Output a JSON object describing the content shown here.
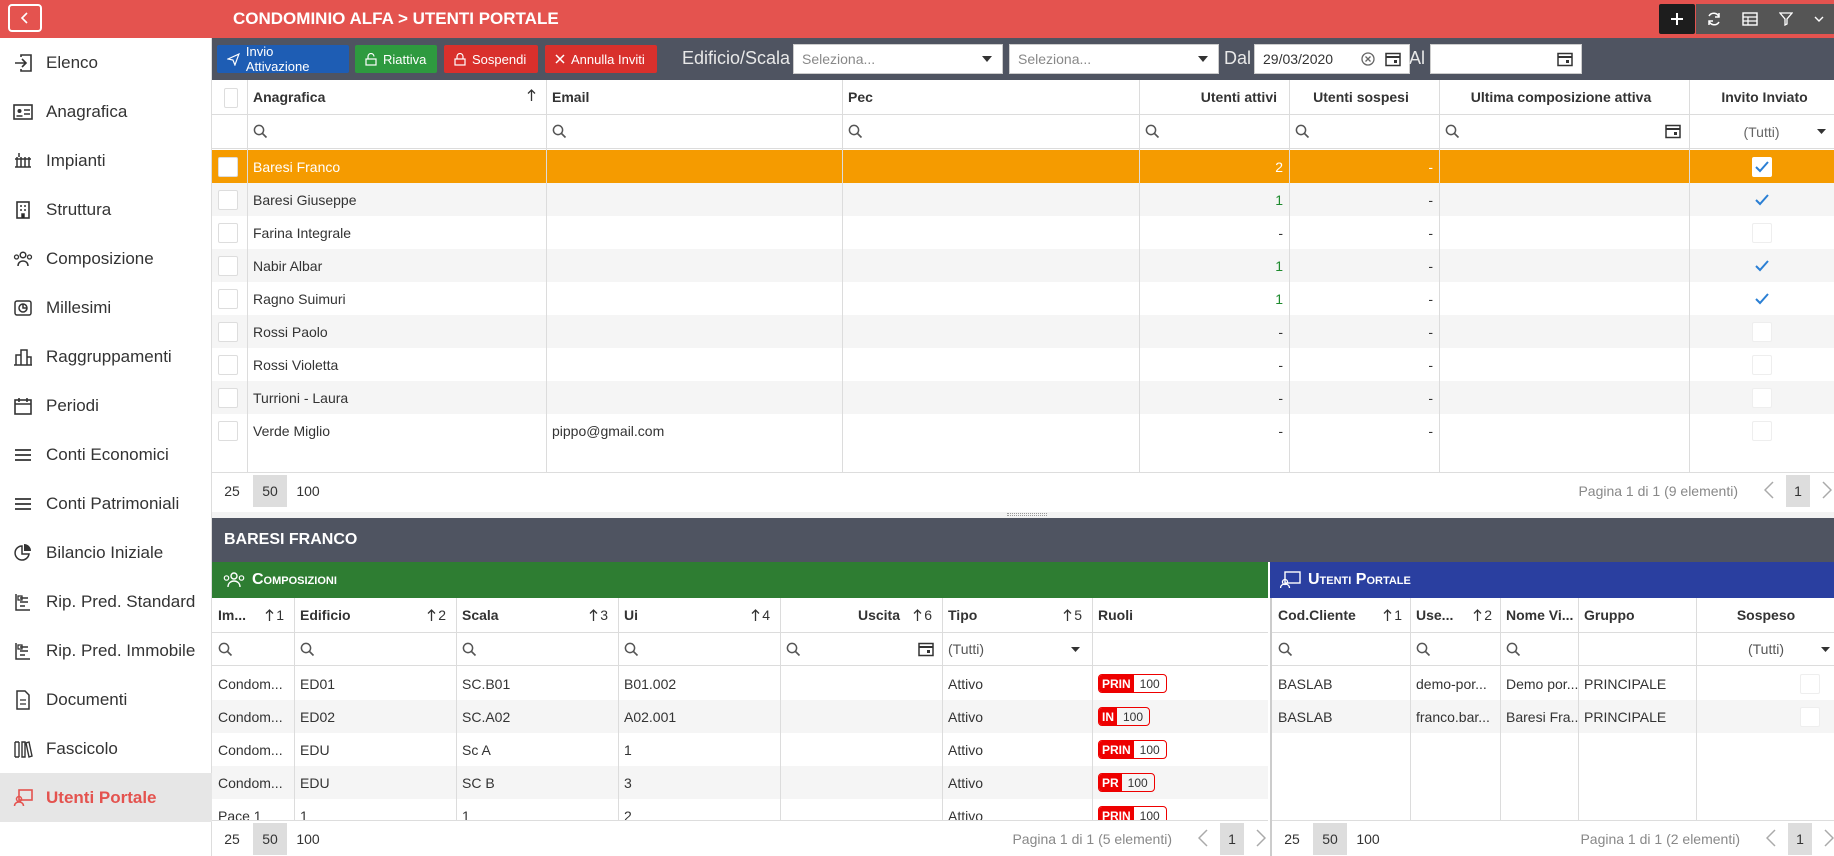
{
  "header": {
    "title": "CONDOMINIO ALFA > UTENTI PORTALE"
  },
  "sidebar": {
    "items": [
      {
        "label": "Elenco",
        "icon": "sign-in-icon"
      },
      {
        "label": "Anagrafica",
        "icon": "id-card-icon"
      },
      {
        "label": "Impianti",
        "icon": "radiator-icon"
      },
      {
        "label": "Struttura",
        "icon": "building-icon"
      },
      {
        "label": "Composizione",
        "icon": "users-icon"
      },
      {
        "label": "Millesimi",
        "icon": "chart-pie-icon"
      },
      {
        "label": "Raggruppamenti",
        "icon": "buildings-icon"
      },
      {
        "label": "Periodi",
        "icon": "calendar-icon"
      },
      {
        "label": "Conti Economici",
        "icon": "list-icon"
      },
      {
        "label": "Conti Patrimoniali",
        "icon": "list-icon"
      },
      {
        "label": "Bilancio Iniziale",
        "icon": "pie-icon"
      },
      {
        "label": "Rip. Pred. Standard",
        "icon": "split-icon"
      },
      {
        "label": "Rip. Pred. Immobile",
        "icon": "split-icon"
      },
      {
        "label": "Documenti",
        "icon": "document-icon"
      },
      {
        "label": "Fascicolo",
        "icon": "books-icon"
      },
      {
        "label": "Utenti Portale",
        "icon": "user-portal-icon",
        "active": true
      }
    ]
  },
  "toolbar": {
    "invio": "Invio Attivazione",
    "riattiva": "Riattiva",
    "sospendi": "Sospendi",
    "annulla": "Annulla Inviti",
    "edificio_label": "Edificio/Scala",
    "sel1": "Seleziona...",
    "sel2": "Seleziona...",
    "dal": "Dal",
    "dal_value": "29/03/2020",
    "al": "Al",
    "al_value": ""
  },
  "main_grid": {
    "columns": [
      "Anagrafica",
      "Email",
      "Pec",
      "Utenti attivi",
      "Utenti sospesi",
      "Ultima composizione attiva",
      "Invito Inviato"
    ],
    "filter_all": "(Tutti)",
    "rows": [
      {
        "name": "Baresi Franco",
        "email": "",
        "pec": "",
        "attivi": "2",
        "sospesi": "-",
        "ultima": "",
        "invito": true
      },
      {
        "name": "Baresi Giuseppe",
        "email": "",
        "pec": "",
        "attivi": "1",
        "sospesi": "-",
        "ultima": "",
        "invito": true
      },
      {
        "name": "Farina Integrale",
        "email": "",
        "pec": "",
        "attivi": "-",
        "sospesi": "-",
        "ultima": "",
        "invito": false
      },
      {
        "name": "Nabir Albar",
        "email": "",
        "pec": "",
        "attivi": "1",
        "sospesi": "-",
        "ultima": "",
        "invito": true
      },
      {
        "name": "Ragno Suimuri",
        "email": "",
        "pec": "",
        "attivi": "1",
        "sospesi": "-",
        "ultima": "",
        "invito": true
      },
      {
        "name": "Rossi Paolo",
        "email": "",
        "pec": "",
        "attivi": "-",
        "sospesi": "-",
        "ultima": "",
        "invito": false
      },
      {
        "name": "Rossi Violetta",
        "email": "",
        "pec": "",
        "attivi": "-",
        "sospesi": "-",
        "ultima": "",
        "invito": false
      },
      {
        "name": "Turrioni - Laura",
        "email": "",
        "pec": "",
        "attivi": "-",
        "sospesi": "-",
        "ultima": "",
        "invito": false
      },
      {
        "name": "Verde Miglio",
        "email": "pippo@gmail.com",
        "pec": "",
        "attivi": "-",
        "sospesi": "-",
        "ultima": "",
        "invito": false
      }
    ],
    "page_sizes": [
      "25",
      "50",
      "100"
    ],
    "pager_text": "Pagina 1 di 1 (9 elementi)",
    "page": "1"
  },
  "detail": {
    "title": "BARESI FRANCO"
  },
  "composizioni": {
    "title": "Composizioni",
    "columns": [
      {
        "label": "Im...",
        "sort": "1"
      },
      {
        "label": "Edificio",
        "sort": "2"
      },
      {
        "label": "Scala",
        "sort": "3"
      },
      {
        "label": "Ui",
        "sort": "4"
      },
      {
        "label": "Uscita",
        "sort": "6"
      },
      {
        "label": "Tipo",
        "sort": "5"
      },
      {
        "label": "Ruoli",
        "sort": ""
      }
    ],
    "filter_all": "(Tutti)",
    "rows": [
      {
        "im": "Condom...",
        "edificio": "ED01",
        "scala": "SC.B01",
        "ui": "B01.002",
        "uscita": "",
        "tipo": "Attivo",
        "ruolo": "PRIN",
        "perc": "100"
      },
      {
        "im": "Condom...",
        "edificio": "ED02",
        "scala": "SC.A02",
        "ui": "A02.001",
        "uscita": "",
        "tipo": "Attivo",
        "ruolo": "IN",
        "perc": "100"
      },
      {
        "im": "Condom...",
        "edificio": "EDU",
        "scala": "Sc A",
        "ui": "1",
        "uscita": "",
        "tipo": "Attivo",
        "ruolo": "PRIN",
        "perc": "100"
      },
      {
        "im": "Condom...",
        "edificio": "EDU",
        "scala": "SC B",
        "ui": "3",
        "uscita": "",
        "tipo": "Attivo",
        "ruolo": "PR",
        "perc": "100"
      },
      {
        "im": "Pace 1",
        "edificio": "1",
        "scala": "1",
        "ui": "2",
        "uscita": "",
        "tipo": "Attivo",
        "ruolo": "PRIN",
        "perc": "100"
      }
    ],
    "page_sizes": [
      "25",
      "50",
      "100"
    ],
    "pager_text": "Pagina 1 di 1 (5 elementi)",
    "page": "1"
  },
  "utenti": {
    "title": "Utenti Portale",
    "columns": [
      {
        "label": "Cod.Cliente",
        "sort": "1"
      },
      {
        "label": "Use...",
        "sort": "2"
      },
      {
        "label": "Nome Vi...",
        "sort": ""
      },
      {
        "label": "Gruppo",
        "sort": ""
      },
      {
        "label": "Sospeso",
        "sort": ""
      }
    ],
    "filter_all": "(Tutti)",
    "rows": [
      {
        "cod": "BASLAB",
        "user": "demo-por...",
        "nome": "Demo por...",
        "gruppo": "PRINCIPALE"
      },
      {
        "cod": "BASLAB",
        "user": "franco.bar...",
        "nome": "Baresi Fra...",
        "gruppo": "PRINCIPALE"
      }
    ],
    "page_sizes": [
      "25",
      "50",
      "100"
    ],
    "pager_text": "Pagina 1 di 1 (2 elementi)",
    "page": "1"
  },
  "colors": {
    "accent": "#e4534f",
    "toolbar": "#4f5461",
    "selected_row": "#f59b00",
    "green": "#2e7d32",
    "blue": "#2a3fa0"
  }
}
